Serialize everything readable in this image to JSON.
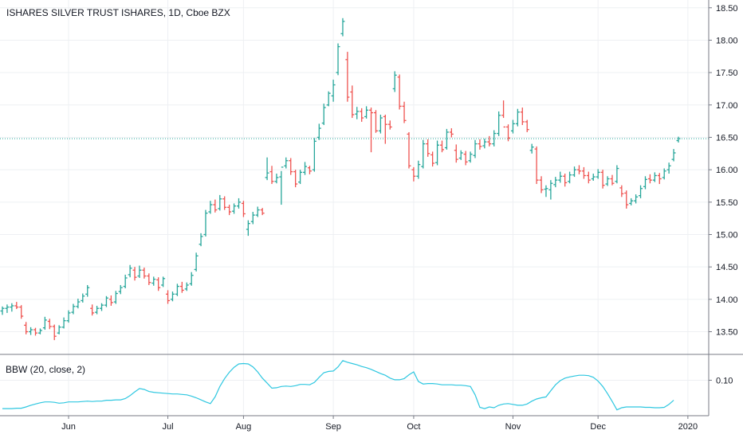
{
  "colors": {
    "up": "#26a69a",
    "down": "#ef5350",
    "ref_line": "#26a69a",
    "indicator": "#2ec7e0",
    "grid": "#eef0f3",
    "axis": "#787b86",
    "text": "#131722"
  },
  "chart_data": [
    {
      "type": "ohlc",
      "title": "ISHARES SILVER TRUST ISHARES, 1D, Cboe BZX",
      "x_axis_labels": [
        "Jun",
        "Jul",
        "Aug",
        "Sep",
        "Oct",
        "Nov",
        "Dec",
        "2020"
      ],
      "ylim": [
        13.15,
        18.62
      ],
      "y_ticks": [
        13.5,
        14.0,
        14.5,
        15.0,
        15.5,
        16.0,
        16.5,
        17.0,
        17.5,
        18.0,
        18.5
      ],
      "y_tick_labels": [
        "13.50",
        "14.00",
        "14.50",
        "15.00",
        "15.50",
        "16.00",
        "16.50",
        "17.00",
        "17.50",
        "18.00",
        "18.50"
      ],
      "reference_line": 16.48,
      "grid": true,
      "bars": [
        [
          13.82,
          13.89,
          13.76,
          13.86
        ],
        [
          13.86,
          13.92,
          13.79,
          13.88
        ],
        [
          13.88,
          13.94,
          13.81,
          13.9
        ],
        [
          13.9,
          13.96,
          13.85,
          13.88
        ],
        [
          13.88,
          13.91,
          13.7,
          13.74
        ],
        [
          13.6,
          13.65,
          13.46,
          13.5
        ],
        [
          13.5,
          13.57,
          13.45,
          13.53
        ],
        [
          13.53,
          13.56,
          13.44,
          13.48
        ],
        [
          13.48,
          13.55,
          13.46,
          13.52
        ],
        [
          13.56,
          13.73,
          13.53,
          13.68
        ],
        [
          13.66,
          13.7,
          13.54,
          13.58
        ],
        [
          13.58,
          13.61,
          13.37,
          13.43
        ],
        [
          13.48,
          13.6,
          13.46,
          13.57
        ],
        [
          13.57,
          13.72,
          13.55,
          13.67
        ],
        [
          13.67,
          13.83,
          13.64,
          13.79
        ],
        [
          13.8,
          13.93,
          13.77,
          13.89
        ],
        [
          13.89,
          14.01,
          13.86,
          13.96
        ],
        [
          13.98,
          14.09,
          13.95,
          14.05
        ],
        [
          14.08,
          14.22,
          14.04,
          14.18
        ],
        [
          13.86,
          13.92,
          13.75,
          13.79
        ],
        [
          13.8,
          13.9,
          13.77,
          13.86
        ],
        [
          13.86,
          13.94,
          13.82,
          13.91
        ],
        [
          13.91,
          14.05,
          13.88,
          14.02
        ],
        [
          14.0,
          14.06,
          13.9,
          13.95
        ],
        [
          13.96,
          14.13,
          13.93,
          14.09
        ],
        [
          14.12,
          14.22,
          14.08,
          14.18
        ],
        [
          14.2,
          14.38,
          14.17,
          14.33
        ],
        [
          14.38,
          14.53,
          14.34,
          14.48
        ],
        [
          14.45,
          14.5,
          14.29,
          14.34
        ],
        [
          14.36,
          14.52,
          14.33,
          14.45
        ],
        [
          14.45,
          14.49,
          14.32,
          14.36
        ],
        [
          14.36,
          14.4,
          14.22,
          14.26
        ],
        [
          14.25,
          14.35,
          14.21,
          14.31
        ],
        [
          14.3,
          14.34,
          14.13,
          14.18
        ],
        [
          14.22,
          14.35,
          14.19,
          14.32
        ],
        [
          14.08,
          14.14,
          13.93,
          13.98
        ],
        [
          14.0,
          14.12,
          13.97,
          14.08
        ],
        [
          14.08,
          14.24,
          14.05,
          14.2
        ],
        [
          14.2,
          14.27,
          14.1,
          14.14
        ],
        [
          14.16,
          14.26,
          14.13,
          14.22
        ],
        [
          14.24,
          14.42,
          14.21,
          14.37
        ],
        [
          14.46,
          14.72,
          14.43,
          14.67
        ],
        [
          14.85,
          15.02,
          14.82,
          14.97
        ],
        [
          15.0,
          15.38,
          14.97,
          15.33
        ],
        [
          15.35,
          15.52,
          15.32,
          15.46
        ],
        [
          15.46,
          15.54,
          15.34,
          15.38
        ],
        [
          15.4,
          15.61,
          15.37,
          15.55
        ],
        [
          15.55,
          15.59,
          15.38,
          15.42
        ],
        [
          15.42,
          15.46,
          15.3,
          15.35
        ],
        [
          15.36,
          15.48,
          15.32,
          15.44
        ],
        [
          15.44,
          15.56,
          15.4,
          15.5
        ],
        [
          15.48,
          15.52,
          15.27,
          15.32
        ],
        [
          15.08,
          15.22,
          14.98,
          15.17
        ],
        [
          15.2,
          15.35,
          15.16,
          15.3
        ],
        [
          15.3,
          15.43,
          15.27,
          15.38
        ],
        [
          15.38,
          15.41,
          15.3,
          15.33
        ],
        [
          15.88,
          16.19,
          15.84,
          15.95
        ],
        [
          15.97,
          16.06,
          15.78,
          15.82
        ],
        [
          15.82,
          15.94,
          15.79,
          15.88
        ],
        [
          15.89,
          15.98,
          15.46,
          16.04
        ],
        [
          16.06,
          16.19,
          16.02,
          16.14
        ],
        [
          16.14,
          16.18,
          15.92,
          15.97
        ],
        [
          15.97,
          16.0,
          15.73,
          15.78
        ],
        [
          15.81,
          16.0,
          15.78,
          15.96
        ],
        [
          15.96,
          16.12,
          15.92,
          16.05
        ],
        [
          16.03,
          16.06,
          15.93,
          15.98
        ],
        [
          16.0,
          16.49,
          15.97,
          16.44
        ],
        [
          16.5,
          16.71,
          16.46,
          16.64
        ],
        [
          16.72,
          17.02,
          16.69,
          16.96
        ],
        [
          17.0,
          17.21,
          16.98,
          17.18
        ],
        [
          17.14,
          17.39,
          17.05,
          17.31
        ],
        [
          17.5,
          17.95,
          17.46,
          17.9
        ],
        [
          18.1,
          18.34,
          18.06,
          18.29
        ],
        [
          17.7,
          17.82,
          17.05,
          17.12
        ],
        [
          17.2,
          17.3,
          16.8,
          16.85
        ],
        [
          16.86,
          16.97,
          16.78,
          16.9
        ],
        [
          16.9,
          16.95,
          16.74,
          16.8
        ],
        [
          16.82,
          16.98,
          16.79,
          16.92
        ],
        [
          16.92,
          16.96,
          16.27,
          16.88
        ],
        [
          16.88,
          16.92,
          16.57,
          16.6
        ],
        [
          16.6,
          16.85,
          16.56,
          16.8
        ],
        [
          16.82,
          16.85,
          16.4,
          16.7
        ],
        [
          16.7,
          16.76,
          16.62,
          16.66
        ],
        [
          17.25,
          17.52,
          17.2,
          17.46
        ],
        [
          17.43,
          17.47,
          16.93,
          16.98
        ],
        [
          16.98,
          17.05,
          16.72,
          16.76
        ],
        [
          16.55,
          16.58,
          16.02,
          16.06
        ],
        [
          16.0,
          16.04,
          15.82,
          15.9
        ],
        [
          15.9,
          16.14,
          15.86,
          16.08
        ],
        [
          16.05,
          16.46,
          16.02,
          16.4
        ],
        [
          16.4,
          16.47,
          16.2,
          16.25
        ],
        [
          16.23,
          16.28,
          16.05,
          16.1
        ],
        [
          16.11,
          16.45,
          16.07,
          16.38
        ],
        [
          16.38,
          16.45,
          16.27,
          16.31
        ],
        [
          16.34,
          16.63,
          16.31,
          16.58
        ],
        [
          16.58,
          16.64,
          16.5,
          16.55
        ],
        [
          16.3,
          16.39,
          16.11,
          16.16
        ],
        [
          16.18,
          16.3,
          16.15,
          16.26
        ],
        [
          16.24,
          16.29,
          16.07,
          16.12
        ],
        [
          16.14,
          16.28,
          16.11,
          16.24
        ],
        [
          16.22,
          16.46,
          16.18,
          16.4
        ],
        [
          16.4,
          16.47,
          16.31,
          16.36
        ],
        [
          16.37,
          16.48,
          16.33,
          16.43
        ],
        [
          16.43,
          16.52,
          16.36,
          16.4
        ],
        [
          16.4,
          16.61,
          16.36,
          16.56
        ],
        [
          16.56,
          16.9,
          16.52,
          16.84
        ],
        [
          16.84,
          17.07,
          16.8,
          16.66
        ],
        [
          16.66,
          16.7,
          16.44,
          16.49
        ],
        [
          16.6,
          16.77,
          16.56,
          16.71
        ],
        [
          16.71,
          16.94,
          16.67,
          16.89
        ],
        [
          16.89,
          16.96,
          16.69,
          16.74
        ],
        [
          16.74,
          16.77,
          16.58,
          16.62
        ],
        [
          16.3,
          16.4,
          16.25,
          16.35
        ],
        [
          16.32,
          16.36,
          15.78,
          15.84
        ],
        [
          15.84,
          15.9,
          15.64,
          15.69
        ],
        [
          15.7,
          15.76,
          15.58,
          15.71
        ],
        [
          15.69,
          15.84,
          15.54,
          15.79
        ],
        [
          15.77,
          15.89,
          15.73,
          15.84
        ],
        [
          15.84,
          15.97,
          15.8,
          15.9
        ],
        [
          15.9,
          15.94,
          15.74,
          15.8
        ],
        [
          15.82,
          15.97,
          15.79,
          15.92
        ],
        [
          15.92,
          16.05,
          15.89,
          16.0
        ],
        [
          16.0,
          16.07,
          15.93,
          15.98
        ],
        [
          15.98,
          16.04,
          15.86,
          15.91
        ],
        [
          15.91,
          15.97,
          15.79,
          15.84
        ],
        [
          15.86,
          15.94,
          15.83,
          15.89
        ],
        [
          15.89,
          16.01,
          15.86,
          15.96
        ],
        [
          15.96,
          16.0,
          15.71,
          15.76
        ],
        [
          15.78,
          15.9,
          15.75,
          15.86
        ],
        [
          15.86,
          15.92,
          15.76,
          15.79
        ],
        [
          15.82,
          16.07,
          15.79,
          16.02
        ],
        [
          15.72,
          15.76,
          15.58,
          15.63
        ],
        [
          15.64,
          15.68,
          15.4,
          15.46
        ],
        [
          15.48,
          15.56,
          15.45,
          15.52
        ],
        [
          15.52,
          15.62,
          15.48,
          15.58
        ],
        [
          15.6,
          15.76,
          15.56,
          15.71
        ],
        [
          15.74,
          15.9,
          15.7,
          15.85
        ],
        [
          15.86,
          15.93,
          15.79,
          15.84
        ],
        [
          15.84,
          15.96,
          15.81,
          15.91
        ],
        [
          15.91,
          15.95,
          15.78,
          15.86
        ],
        [
          15.88,
          16.02,
          15.85,
          15.98
        ],
        [
          16.0,
          16.11,
          15.94,
          16.06
        ],
        [
          16.16,
          16.32,
          16.13,
          16.26
        ],
        [
          16.45,
          16.51,
          16.42,
          16.48
        ]
      ]
    },
    {
      "type": "line",
      "title": "BBW (20, close, 2)",
      "y_ticks": [
        0.1
      ],
      "y_tick_labels": [
        "0.10"
      ],
      "ylim": [
        0.015,
        0.16
      ],
      "series": [
        {
          "name": "",
          "values": [
            0.032,
            0.032,
            0.032,
            0.033,
            0.033,
            0.036,
            0.04,
            0.043,
            0.046,
            0.048,
            0.048,
            0.047,
            0.045,
            0.046,
            0.048,
            0.048,
            0.048,
            0.049,
            0.05,
            0.049,
            0.05,
            0.05,
            0.052,
            0.052,
            0.053,
            0.053,
            0.056,
            0.063,
            0.072,
            0.08,
            0.078,
            0.073,
            0.071,
            0.07,
            0.069,
            0.068,
            0.067,
            0.067,
            0.066,
            0.065,
            0.062,
            0.058,
            0.053,
            0.048,
            0.044,
            0.06,
            0.085,
            0.104,
            0.119,
            0.131,
            0.139,
            0.14,
            0.139,
            0.132,
            0.12,
            0.105,
            0.093,
            0.081,
            0.082,
            0.085,
            0.086,
            0.085,
            0.087,
            0.09,
            0.09,
            0.089,
            0.095,
            0.107,
            0.118,
            0.121,
            0.122,
            0.132,
            0.147,
            0.143,
            0.14,
            0.137,
            0.133,
            0.13,
            0.126,
            0.121,
            0.116,
            0.112,
            0.105,
            0.101,
            0.101,
            0.104,
            0.113,
            0.12,
            0.097,
            0.091,
            0.092,
            0.092,
            0.091,
            0.089,
            0.089,
            0.089,
            0.088,
            0.088,
            0.087,
            0.085,
            0.065,
            0.035,
            0.032,
            0.036,
            0.034,
            0.04,
            0.043,
            0.044,
            0.042,
            0.04,
            0.04,
            0.043,
            0.05,
            0.055,
            0.058,
            0.06,
            0.075,
            0.089,
            0.099,
            0.105,
            0.108,
            0.11,
            0.112,
            0.112,
            0.111,
            0.107,
            0.098,
            0.085,
            0.068,
            0.049,
            0.029,
            0.034,
            0.036,
            0.036,
            0.036,
            0.036,
            0.035,
            0.035,
            0.034,
            0.034,
            0.035,
            0.042,
            0.052
          ]
        }
      ]
    }
  ]
}
